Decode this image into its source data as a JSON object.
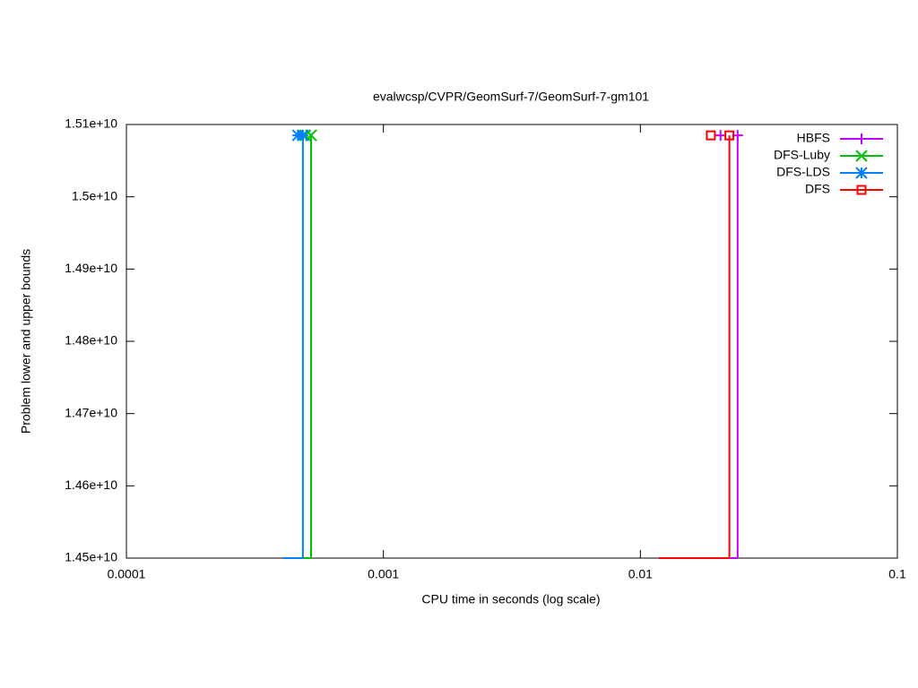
{
  "chart_data": {
    "type": "step",
    "title": "evalwcsp/CVPR/GeomSurf-7/GeomSurf-7-gm101",
    "x_label": "CPU time in seconds (log scale)",
    "y_label": "Problem lower and upper bounds",
    "x_log_scale": true,
    "xlim": [
      0.0001,
      0.1
    ],
    "xticks": [
      0.0001,
      0.001,
      0.01,
      0.1
    ],
    "ylim": [
      14500000000,
      15100000000
    ],
    "yticks": [
      {
        "value": 14500000000,
        "label": "1.45e+10"
      },
      {
        "value": 14600000000,
        "label": "1.46e+10"
      },
      {
        "value": 14700000000,
        "label": "1.47e+10"
      },
      {
        "value": 14800000000,
        "label": "1.48e+10"
      },
      {
        "value": 14900000000,
        "label": "1.49e+10"
      },
      {
        "value": 15000000000,
        "label": "1.5e+10"
      },
      {
        "value": 15100000000,
        "label": "1.51e+10"
      }
    ],
    "legend": "top-right",
    "series": [
      {
        "name": "HBFS",
        "color": "#c000ff",
        "marker": "plus",
        "x": [
          0.0118,
          0.0239
        ],
        "values": [
          14500000000,
          15085000000
        ],
        "points_x": [
          0.0205,
          0.0239
        ],
        "points_values": [
          15085000000,
          15085000000
        ]
      },
      {
        "name": "DFS-Luby",
        "color": "#00c000",
        "marker": "cross",
        "x": [
          0.000408,
          0.000523
        ],
        "values": [
          14500000000,
          15085000000
        ],
        "points_x": [
          0.000496,
          0.000523
        ],
        "points_values": [
          15085000000,
          15085000000
        ]
      },
      {
        "name": "DFS-LDS",
        "color": "#0080ff",
        "marker": "star",
        "x": [
          0.000408,
          0.000486
        ],
        "values": [
          14500000000,
          15085000000
        ],
        "points_x": [
          0.000465,
          0.000486
        ],
        "points_values": [
          15085000000,
          15085000000
        ]
      },
      {
        "name": "DFS",
        "color": "#ff0000",
        "marker": "square",
        "x": [
          0.0118,
          0.0222
        ],
        "values": [
          14500000000,
          15085000000
        ],
        "points_x": [
          0.0188,
          0.0222
        ],
        "points_values": [
          15085000000,
          15085000000
        ]
      }
    ]
  }
}
